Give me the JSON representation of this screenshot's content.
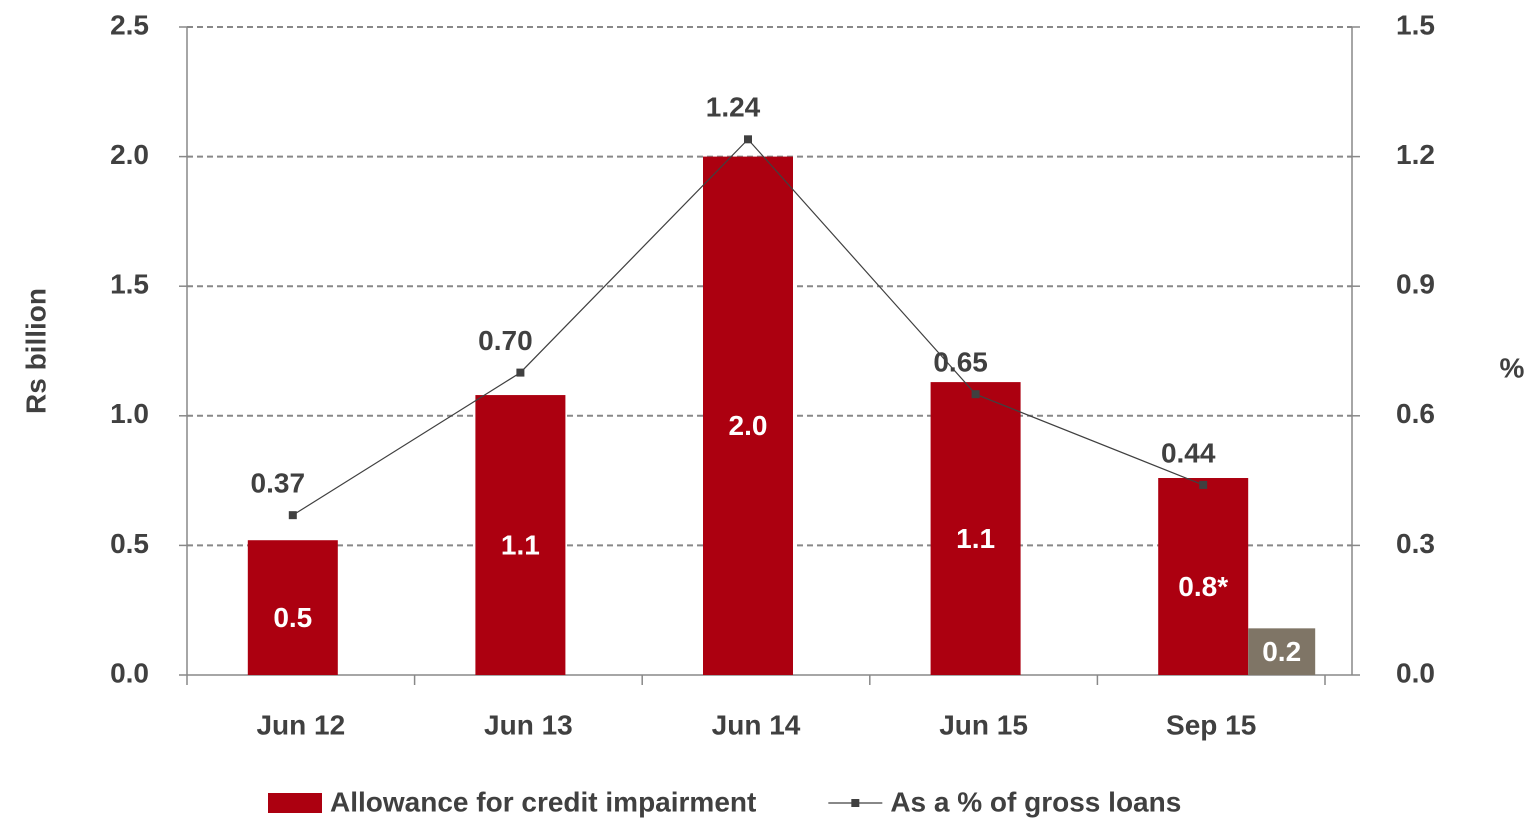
{
  "chart_data": {
    "type": "bar",
    "y_axis_title": "Rs billion",
    "y2_axis_title": "%",
    "categories": [
      "Jun 12",
      "Jun 13",
      "Jun 14",
      "Jun 15",
      "Sep 15"
    ],
    "series": [
      {
        "name": "Allowance for credit impairment",
        "type": "bar",
        "color": "#ac0010",
        "values": [
          0.52,
          1.08,
          2.0,
          1.13,
          0.76
        ],
        "value_labels": [
          "0.5",
          "1.1",
          "2.0",
          "1.1",
          "0.8*"
        ]
      },
      {
        "type": "bar",
        "color": "#7f7566",
        "values": [
          null,
          null,
          null,
          null,
          0.18
        ],
        "value_labels": [
          null,
          null,
          null,
          null,
          "0.2"
        ]
      },
      {
        "name": "As a % of gross loans",
        "type": "line",
        "axis": "y2",
        "color": "#404040",
        "values": [
          0.37,
          0.7,
          1.24,
          0.65,
          0.44
        ],
        "value_labels": [
          "0.37",
          "0.70",
          "1.24",
          "0.65",
          "0.44"
        ]
      }
    ],
    "ylim": [
      0,
      2.5
    ],
    "yticks": [
      {
        "value": 0,
        "label": "0.0"
      },
      0.5,
      {
        "value": 1,
        "label": "1.0"
      },
      1.5,
      {
        "value": 2,
        "label": "2.0"
      },
      2.5
    ],
    "y2lim": [
      0,
      1.5
    ],
    "y2ticks": [
      {
        "value": 0,
        "label": "0.0"
      },
      0.3,
      0.6,
      0.9,
      1.2,
      1.5
    ],
    "grid": true,
    "legend": "bottom"
  }
}
